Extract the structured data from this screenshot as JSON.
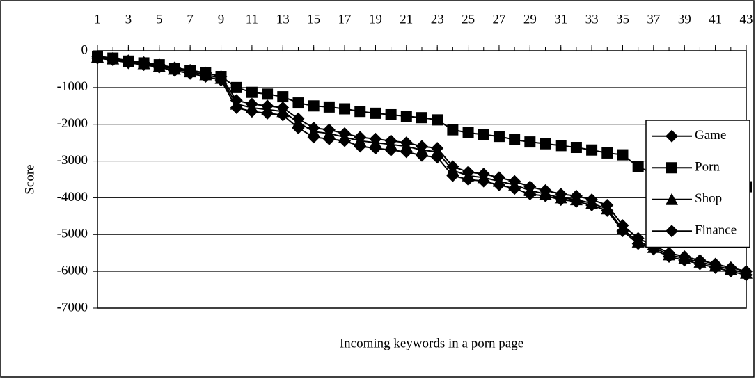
{
  "chart_data": {
    "type": "line",
    "x_label": "Incoming keywords in a porn page",
    "y_label": "Score",
    "x": [
      1,
      2,
      3,
      4,
      5,
      6,
      7,
      8,
      9,
      10,
      11,
      12,
      13,
      14,
      15,
      16,
      17,
      18,
      19,
      20,
      21,
      22,
      23,
      24,
      25,
      26,
      27,
      28,
      29,
      30,
      31,
      32,
      33,
      34,
      35,
      36,
      37,
      38,
      39,
      40,
      41,
      42,
      43
    ],
    "xlim": [
      1,
      43
    ],
    "xticks": [
      1,
      3,
      5,
      7,
      9,
      11,
      13,
      15,
      17,
      19,
      21,
      23,
      25,
      27,
      29,
      31,
      33,
      35,
      37,
      39,
      41,
      43
    ],
    "ylim": [
      -7000,
      0
    ],
    "yticks": [
      0,
      -1000,
      -2000,
      -3000,
      -4000,
      -5000,
      -6000,
      -7000
    ],
    "grid": true,
    "legend": "right",
    "series": [
      {
        "name": "Game",
        "color": "#000000",
        "marker": "diamond",
        "values": [
          -150,
          -200,
          -270,
          -320,
          -380,
          -460,
          -530,
          -600,
          -700,
          -1350,
          -1450,
          -1500,
          -1550,
          -1850,
          -2100,
          -2150,
          -2250,
          -2350,
          -2400,
          -2450,
          -2500,
          -2600,
          -2650,
          -3150,
          -3300,
          -3350,
          -3450,
          -3550,
          -3700,
          -3800,
          -3900,
          -3950,
          -4050,
          -4200,
          -4750,
          -5100,
          -5300,
          -5500,
          -5600,
          -5700,
          -5800,
          -5900,
          -6000
        ]
      },
      {
        "name": "Porn",
        "color": "#000000",
        "marker": "square",
        "values": [
          -150,
          -200,
          -280,
          -330,
          -380,
          -480,
          -540,
          -600,
          -700,
          -1000,
          -1130,
          -1180,
          -1250,
          -1420,
          -1500,
          -1530,
          -1580,
          -1650,
          -1700,
          -1740,
          -1780,
          -1820,
          -1880,
          -2150,
          -2230,
          -2280,
          -2330,
          -2420,
          -2480,
          -2530,
          -2580,
          -2630,
          -2700,
          -2780,
          -2830,
          -3150,
          -3350,
          -3450,
          -3500,
          -3550,
          -3600,
          -3650,
          -3700
        ]
      },
      {
        "name": "Shop",
        "color": "#000000",
        "marker": "triangle",
        "values": [
          -170,
          -220,
          -300,
          -350,
          -420,
          -500,
          -570,
          -650,
          -750,
          -1450,
          -1550,
          -1600,
          -1650,
          -1950,
          -2200,
          -2250,
          -2350,
          -2450,
          -2500,
          -2550,
          -2600,
          -2700,
          -2750,
          -3250,
          -3400,
          -3450,
          -3550,
          -3650,
          -3800,
          -3900,
          -4000,
          -4050,
          -4150,
          -4300,
          -4850,
          -5200,
          -5350,
          -5550,
          -5650,
          -5750,
          -5850,
          -5950,
          -6050
        ]
      },
      {
        "name": "Finance",
        "color": "#000000",
        "marker": "diamond",
        "values": [
          -200,
          -250,
          -330,
          -380,
          -450,
          -540,
          -620,
          -700,
          -800,
          -1550,
          -1650,
          -1700,
          -1750,
          -2100,
          -2350,
          -2400,
          -2450,
          -2600,
          -2650,
          -2700,
          -2750,
          -2850,
          -2900,
          -3400,
          -3500,
          -3550,
          -3650,
          -3750,
          -3900,
          -3950,
          -4050,
          -4100,
          -4200,
          -4350,
          -4900,
          -5250,
          -5400,
          -5600,
          -5700,
          -5800,
          -5900,
          -6000,
          -6100
        ]
      }
    ]
  }
}
